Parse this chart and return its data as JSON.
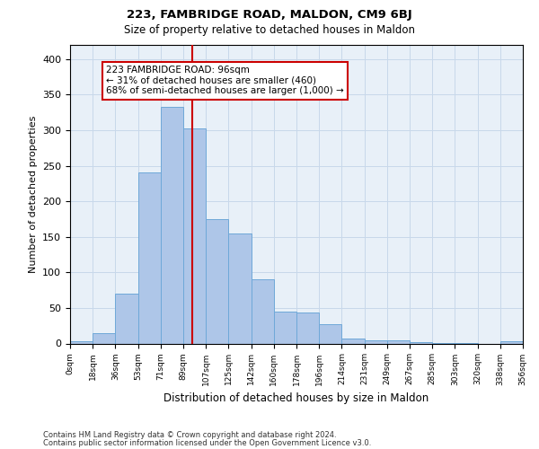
{
  "title": "223, FAMBRIDGE ROAD, MALDON, CM9 6BJ",
  "subtitle": "Size of property relative to detached houses in Maldon",
  "xlabel": "Distribution of detached houses by size in Maldon",
  "ylabel": "Number of detached properties",
  "bin_labels": [
    "0sqm",
    "18sqm",
    "36sqm",
    "53sqm",
    "71sqm",
    "89sqm",
    "107sqm",
    "125sqm",
    "142sqm",
    "160sqm",
    "178sqm",
    "196sqm",
    "214sqm",
    "231sqm",
    "249sqm",
    "267sqm",
    "285sqm",
    "303sqm",
    "320sqm",
    "338sqm",
    "356sqm"
  ],
  "bar_heights": [
    3,
    14,
    70,
    240,
    333,
    303,
    175,
    155,
    90,
    45,
    44,
    27,
    7,
    5,
    5,
    2,
    1,
    1,
    0,
    3
  ],
  "bar_color": "#aec6e8",
  "bar_edge_color": "#6fa8d8",
  "vline_color": "#cc0000",
  "annotation_text": "223 FAMBRIDGE ROAD: 96sqm\n← 31% of detached houses are smaller (460)\n68% of semi-detached houses are larger (1,000) →",
  "annotation_box_color": "#ffffff",
  "annotation_box_edge": "#cc0000",
  "ylim": [
    0,
    420
  ],
  "yticks": [
    0,
    50,
    100,
    150,
    200,
    250,
    300,
    350,
    400
  ],
  "grid_color": "#c8d8ea",
  "bg_color": "#e8f0f8",
  "footer_line1": "Contains HM Land Registry data © Crown copyright and database right 2024.",
  "footer_line2": "Contains public sector information licensed under the Open Government Licence v3.0."
}
